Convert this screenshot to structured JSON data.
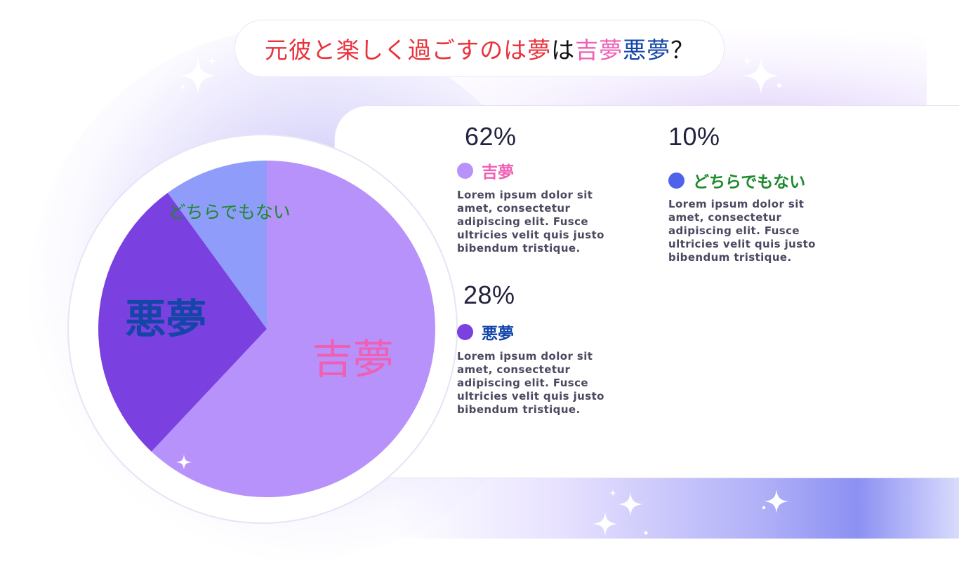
{
  "title": {
    "segments": [
      {
        "text": "元彼と楽しく過ごすのは夢",
        "color": "#e8323c"
      },
      {
        "text": "は",
        "color": "#111111"
      },
      {
        "text": "吉夢",
        "color": "#f05fb4"
      },
      {
        "text": "悪夢",
        "color": "#1446a8"
      },
      {
        "text": "？",
        "color": "#111111"
      }
    ]
  },
  "chart_data": {
    "type": "pie",
    "start_angle_deg": 0,
    "direction": "clockwise",
    "slices": [
      {
        "label": "吉夢",
        "value": 62,
        "color": "#b892fb",
        "label_color": "#f05fb4"
      },
      {
        "label": "悪夢",
        "value": 28,
        "color": "#7a40e0",
        "label_color": "#1446a8"
      },
      {
        "label": "どちらでもない",
        "value": 10,
        "color": "#8f9cfa",
        "label_color": "#1d8a2c"
      }
    ]
  },
  "stats": [
    {
      "percent": "62%",
      "label": "吉夢",
      "dot_color": "#b892fb",
      "label_color": "#f05fb4",
      "description": "Lorem ipsum dolor sit amet, consectetur adipiscing elit. Fusce ultricies velit quis justo bibendum tristique."
    },
    {
      "percent": "10%",
      "label": "どちらでもない",
      "dot_color": "#4f63ea",
      "label_color": "#1d8a2c",
      "description": "Lorem ipsum dolor sit amet, consectetur adipiscing elit. Fusce ultricies velit quis justo bibendum tristique."
    },
    {
      "percent": "28%",
      "label": "悪夢",
      "dot_color": "#7a40e0",
      "label_color": "#1446a8",
      "description": "Lorem ipsum dolor sit amet, consectetur adipiscing elit. Fusce ultricies velit quis justo bibendum tristique."
    }
  ]
}
